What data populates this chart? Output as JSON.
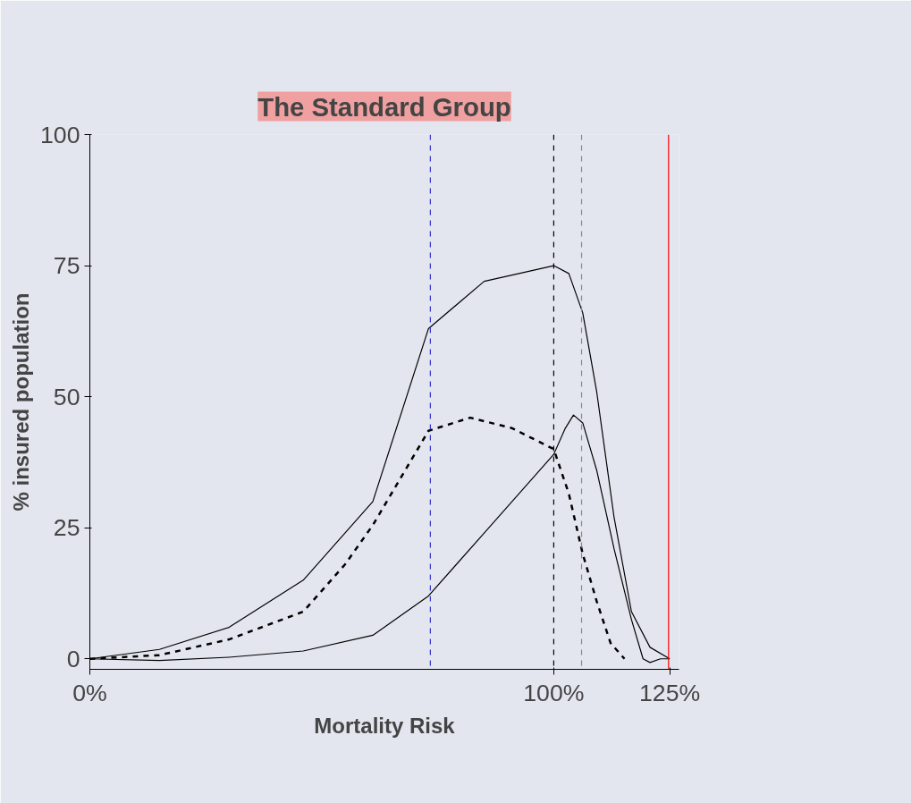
{
  "chart_data": {
    "type": "line",
    "title": "The Standard Group",
    "xlabel": "Mortality Risk",
    "ylabel": "% insured population",
    "xlim": [
      0,
      127
    ],
    "xticks": [
      {
        "value": 0,
        "label": "0%"
      },
      {
        "value": 100,
        "label": "100%"
      },
      {
        "value": 125,
        "label": "125%"
      }
    ],
    "ylim": [
      -2,
      100
    ],
    "yticks": [
      0,
      25,
      50,
      75,
      100
    ],
    "series": [
      {
        "color": "#000000",
        "line_style": "solid",
        "x": [
          0,
          15,
          30,
          46,
          61,
          73,
          85,
          100,
          103.25,
          106.25,
          109.25,
          113,
          116.75,
          120.75,
          125
        ],
        "values": [
          0,
          1.8,
          6,
          15,
          30,
          63,
          72,
          75,
          73.5,
          66,
          51,
          27,
          9,
          2.2,
          0
        ]
      },
      {
        "color": "#000000",
        "line_style": "dashed",
        "x": [
          0,
          15,
          30,
          46,
          55,
          61,
          73,
          82,
          91,
          100,
          103.25,
          106.25,
          109.25,
          112.25,
          115.25
        ],
        "values": [
          0,
          0.7,
          3.7,
          9,
          18,
          25.5,
          43.5,
          46,
          44,
          40,
          31.5,
          20,
          11,
          3,
          0
        ]
      },
      {
        "color": "#000000",
        "line_style": "solid",
        "x": [
          0,
          15,
          30,
          46,
          61,
          73,
          85,
          100,
          102.5,
          104.25,
          106.25,
          109.25,
          113,
          116.75,
          119.25,
          120.75,
          123,
          125
        ],
        "values": [
          0,
          -0.3,
          0.3,
          1.5,
          4.5,
          12,
          24,
          39,
          44,
          46.5,
          45,
          36,
          21,
          7.5,
          0,
          -0.7,
          0,
          0
        ]
      }
    ],
    "ref_lines": [
      {
        "axis": "x",
        "value": 73.4,
        "label": null,
        "color": "#3333cc",
        "line_style": "dashed"
      },
      {
        "axis": "x",
        "value": 100,
        "label": null,
        "color": "#000000",
        "line_style": "dashed"
      },
      {
        "axis": "x",
        "value": 106,
        "label": null,
        "color": "#888888",
        "line_style": "dashed"
      },
      {
        "axis": "x",
        "value": 124.75,
        "label": null,
        "color": "#ff0000",
        "line_style": "solid"
      }
    ]
  }
}
